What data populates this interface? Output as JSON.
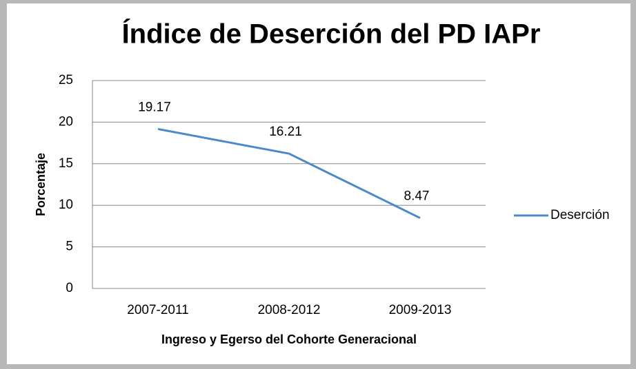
{
  "chart_data": {
    "type": "line",
    "title": "Índice de Deserción del PD IAPr",
    "x_label": "Ingreso y Egerso del Cohorte Generacional",
    "y_label": "Porcentaje",
    "categories": [
      "2007-2011",
      "2008-2012",
      "2009-2013"
    ],
    "series": [
      {
        "name": "Deserción",
        "color": "#4a8ac9",
        "values": [
          19.17,
          16.21,
          8.47
        ]
      }
    ],
    "ylim": [
      0,
      25
    ],
    "yticks": [
      0,
      5,
      10,
      15,
      20,
      25
    ],
    "grid": true,
    "legend": "right"
  }
}
